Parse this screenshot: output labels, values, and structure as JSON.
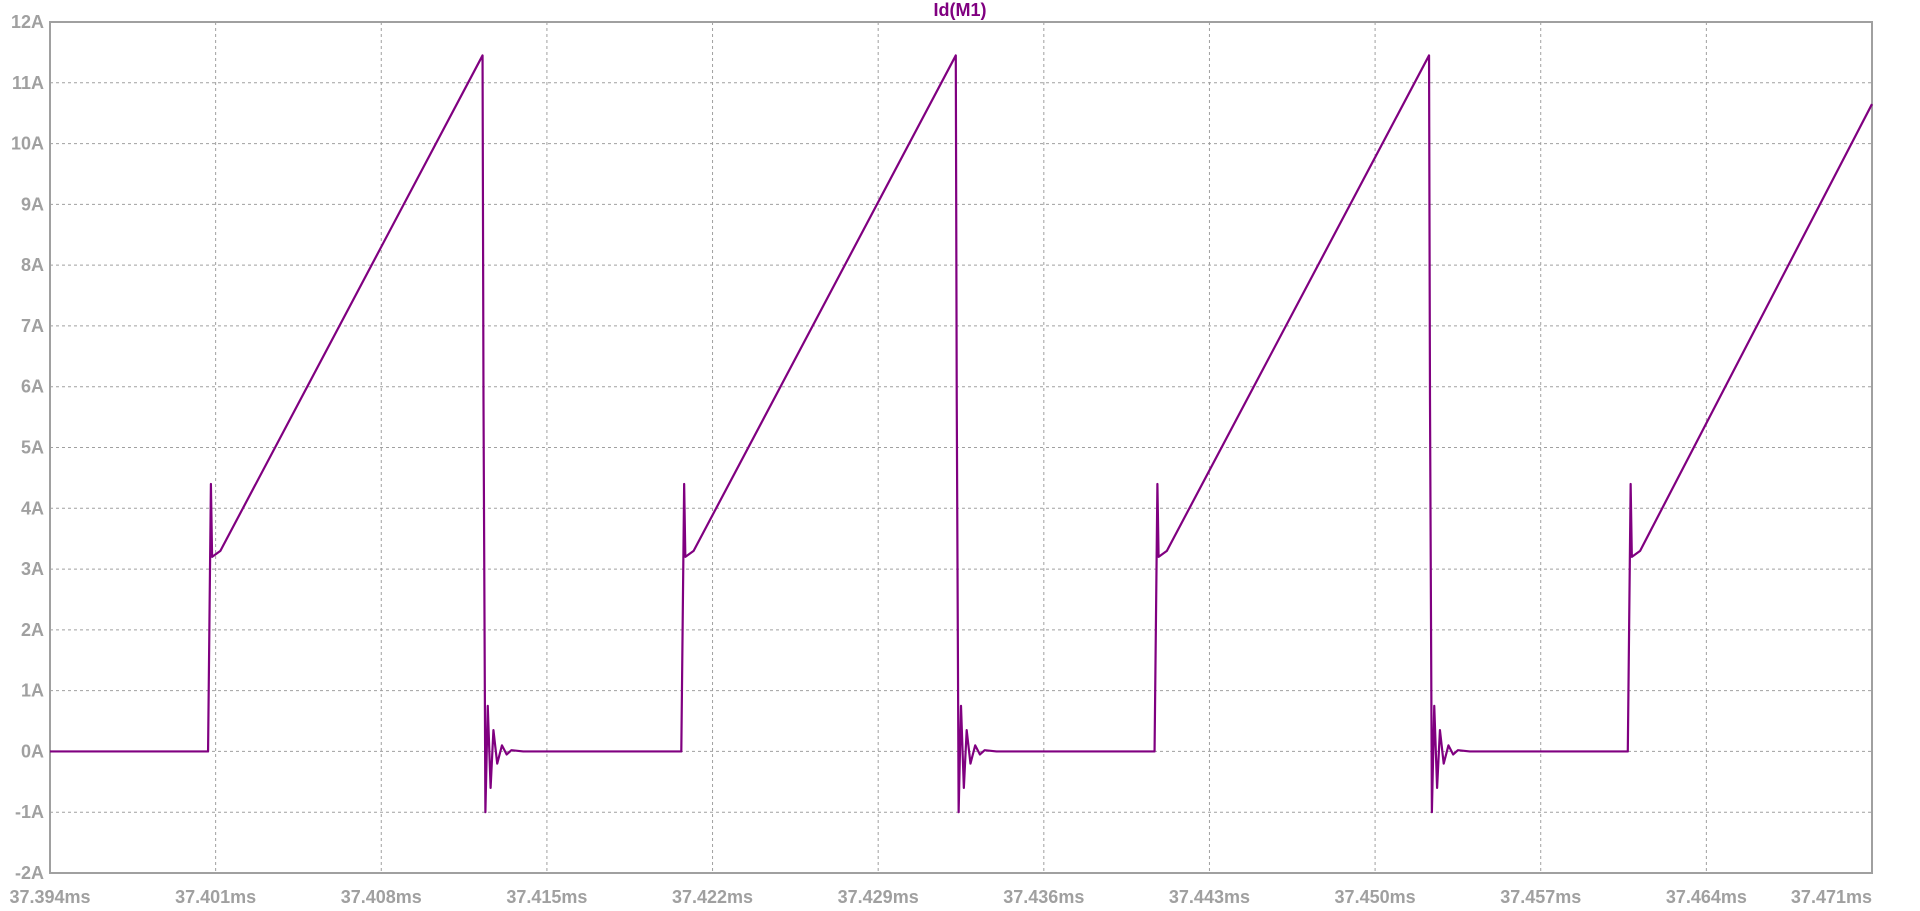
{
  "chart_data": {
    "type": "line",
    "title": "Id(M1)",
    "xlabel": "",
    "ylabel": "",
    "xlim": [
      37.394,
      37.471
    ],
    "ylim": [
      -2,
      12
    ],
    "grid": true,
    "x_unit": "ms",
    "y_unit": "A",
    "x_ticks": [
      "37.394ms",
      "37.401ms",
      "37.408ms",
      "37.415ms",
      "37.422ms",
      "37.429ms",
      "37.436ms",
      "37.443ms",
      "37.450ms",
      "37.457ms",
      "37.464ms",
      "37.471ms"
    ],
    "y_ticks": [
      "12A",
      "11A",
      "10A",
      "9A",
      "8A",
      "7A",
      "6A",
      "5A",
      "4A",
      "3A",
      "2A",
      "1A",
      "0A",
      "-1A",
      "-2A"
    ],
    "series": [
      {
        "name": "Id(M1)",
        "color": "#800080",
        "x": [
          37.394,
          37.40068,
          37.4008,
          37.40085,
          37.4012,
          37.41228,
          37.41232,
          37.4124,
          37.4125,
          37.41262,
          37.41274,
          37.4129,
          37.4131,
          37.4133,
          37.4135,
          37.414,
          37.42068,
          37.4208,
          37.42085,
          37.4212,
          37.43228,
          37.43232,
          37.4324,
          37.4325,
          37.43262,
          37.43274,
          37.4329,
          37.4331,
          37.4333,
          37.4335,
          37.434,
          37.44068,
          37.4408,
          37.44085,
          37.4412,
          37.45228,
          37.45232,
          37.4524,
          37.4525,
          37.45262,
          37.45274,
          37.4529,
          37.4531,
          37.4533,
          37.4535,
          37.454,
          37.46068,
          37.4608,
          37.46085,
          37.4612,
          37.471
        ],
        "y": [
          0,
          0,
          4.4,
          3.2,
          3.3,
          11.45,
          5.8,
          -1.0,
          0.75,
          -0.6,
          0.35,
          -0.2,
          0.1,
          -0.05,
          0.02,
          0,
          0,
          4.4,
          3.2,
          3.3,
          11.45,
          5.8,
          -1.0,
          0.75,
          -0.6,
          0.35,
          -0.2,
          0.1,
          -0.05,
          0.02,
          0,
          0,
          4.4,
          3.2,
          3.3,
          11.45,
          5.8,
          -1.0,
          0.75,
          -0.6,
          0.35,
          -0.2,
          0.1,
          -0.05,
          0.02,
          0,
          0,
          4.4,
          3.2,
          3.3,
          10.65
        ]
      }
    ]
  }
}
